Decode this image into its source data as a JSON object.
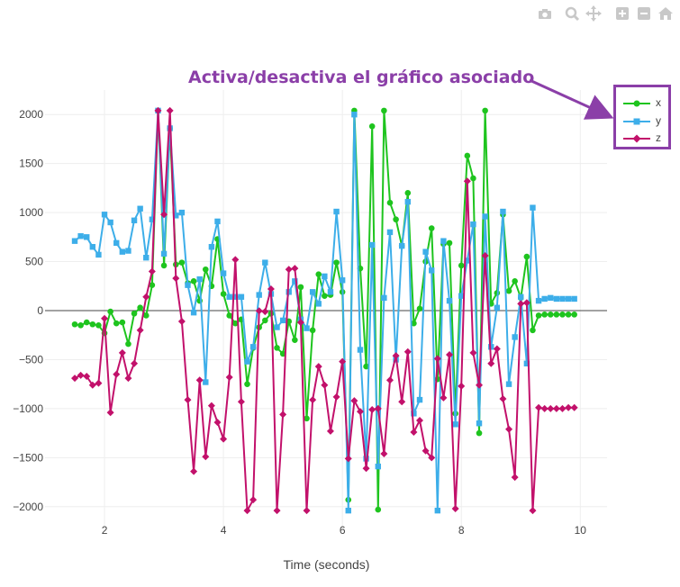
{
  "toolbar": {
    "icons": [
      "camera-icon",
      "zoom-icon",
      "pan-icon",
      "zoom-in-icon",
      "zoom-out-icon",
      "home-icon"
    ]
  },
  "annotation": {
    "text": "Activa/desactiva el gráfico asociado",
    "color": "#8b3fa8"
  },
  "chart_data": {
    "type": "line",
    "title": "",
    "xlabel": "Time (seconds)",
    "ylabel": "",
    "xlim": [
      1.0,
      10.45
    ],
    "ylim": [
      -2250,
      2250
    ],
    "xticks": [
      2,
      4,
      6,
      8,
      10
    ],
    "yticks": [
      2000,
      1500,
      1000,
      500,
      0,
      -500,
      -1000,
      -1500,
      -2000
    ],
    "ytick_labels": [
      "2000",
      "1500",
      "1000",
      "500",
      "0",
      "−500",
      "−1000",
      "−1500",
      "−2000"
    ],
    "grid": true,
    "legend": "top-right",
    "x": [
      1.5,
      1.6,
      1.7,
      1.8,
      1.9,
      2.0,
      2.1,
      2.2,
      2.3,
      2.4,
      2.5,
      2.6,
      2.7,
      2.8,
      2.9,
      3.0,
      3.1,
      3.2,
      3.3,
      3.4,
      3.5,
      3.6,
      3.7,
      3.8,
      3.9,
      4.0,
      4.1,
      4.2,
      4.3,
      4.4,
      4.5,
      4.6,
      4.7,
      4.8,
      4.9,
      5.0,
      5.1,
      5.2,
      5.3,
      5.4,
      5.5,
      5.6,
      5.7,
      5.8,
      5.9,
      6.0,
      6.1,
      6.2,
      6.3,
      6.4,
      6.5,
      6.6,
      6.7,
      6.8,
      6.9,
      7.0,
      7.1,
      7.2,
      7.3,
      7.4,
      7.5,
      7.6,
      7.7,
      7.8,
      7.9,
      8.0,
      8.1,
      8.2,
      8.3,
      8.4,
      8.5,
      8.6,
      8.7,
      8.8,
      8.9,
      9.0,
      9.1,
      9.2,
      9.3,
      9.4,
      9.5,
      9.6,
      9.7,
      9.8,
      9.9
    ],
    "series": [
      {
        "name": "x",
        "color": "#1ec41e",
        "marker": "circle",
        "values": [
          -140,
          -150,
          -120,
          -140,
          -150,
          -230,
          -10,
          -130,
          -120,
          -340,
          -30,
          30,
          -50,
          260,
          2040,
          460,
          1860,
          470,
          490,
          280,
          300,
          100,
          420,
          250,
          730,
          170,
          -50,
          -130,
          -90,
          -750,
          -380,
          -170,
          -100,
          -30,
          -380,
          -440,
          -110,
          -300,
          240,
          -1100,
          -200,
          370,
          150,
          160,
          490,
          190,
          -1930,
          2040,
          430,
          -570,
          1880,
          -2030,
          2040,
          1100,
          930,
          660,
          1200,
          -130,
          20,
          500,
          840,
          -700,
          680,
          690,
          -1050,
          460,
          1580,
          1350,
          -1250,
          2040,
          70,
          180,
          980,
          200,
          300,
          130,
          550,
          -200,
          -50,
          -40,
          -40,
          -40,
          -40,
          -40,
          -40
        ]
      },
      {
        "name": "y",
        "color": "#3daee9",
        "marker": "square",
        "values": [
          710,
          760,
          750,
          650,
          570,
          980,
          900,
          690,
          600,
          610,
          920,
          1040,
          540,
          930,
          2040,
          580,
          1860,
          970,
          1000,
          260,
          -20,
          320,
          -730,
          650,
          910,
          380,
          140,
          140,
          140,
          -520,
          -370,
          160,
          490,
          170,
          -170,
          -100,
          190,
          300,
          -90,
          -180,
          190,
          70,
          350,
          190,
          1010,
          310,
          -2040,
          2000,
          -400,
          -1510,
          670,
          -1590,
          130,
          800,
          -500,
          660,
          1110,
          -1050,
          -910,
          600,
          410,
          -2040,
          710,
          100,
          -1160,
          150,
          510,
          880,
          -1150,
          960,
          -370,
          30,
          1010,
          -750,
          -270,
          140,
          -540,
          1050,
          100,
          120,
          130,
          120,
          120,
          120,
          120
        ]
      },
      {
        "name": "z",
        "color": "#c2116b",
        "marker": "diamond",
        "values": [
          -690,
          -660,
          -670,
          -760,
          -740,
          -80,
          -1040,
          -650,
          -430,
          -690,
          -540,
          -200,
          140,
          400,
          2040,
          980,
          2040,
          330,
          -110,
          -910,
          -1640,
          -710,
          -1490,
          -970,
          -1140,
          -1310,
          -680,
          520,
          -930,
          -2040,
          -1930,
          -2,
          -10,
          220,
          -2040,
          -1060,
          420,
          430,
          -120,
          -2040,
          -910,
          -570,
          -760,
          -1230,
          -880,
          -520,
          -1510,
          -920,
          -1030,
          -1610,
          -1010,
          -1000,
          -1460,
          -710,
          -460,
          -930,
          -420,
          -1240,
          -1120,
          -1430,
          -1500,
          -490,
          -890,
          -450,
          -2020,
          -770,
          1320,
          -430,
          -760,
          560,
          -540,
          -390,
          -900,
          -1210,
          -1700,
          70,
          80,
          -2040,
          -990,
          -1000,
          -1000,
          -1000,
          -1000,
          -990,
          -990
        ]
      }
    ]
  }
}
